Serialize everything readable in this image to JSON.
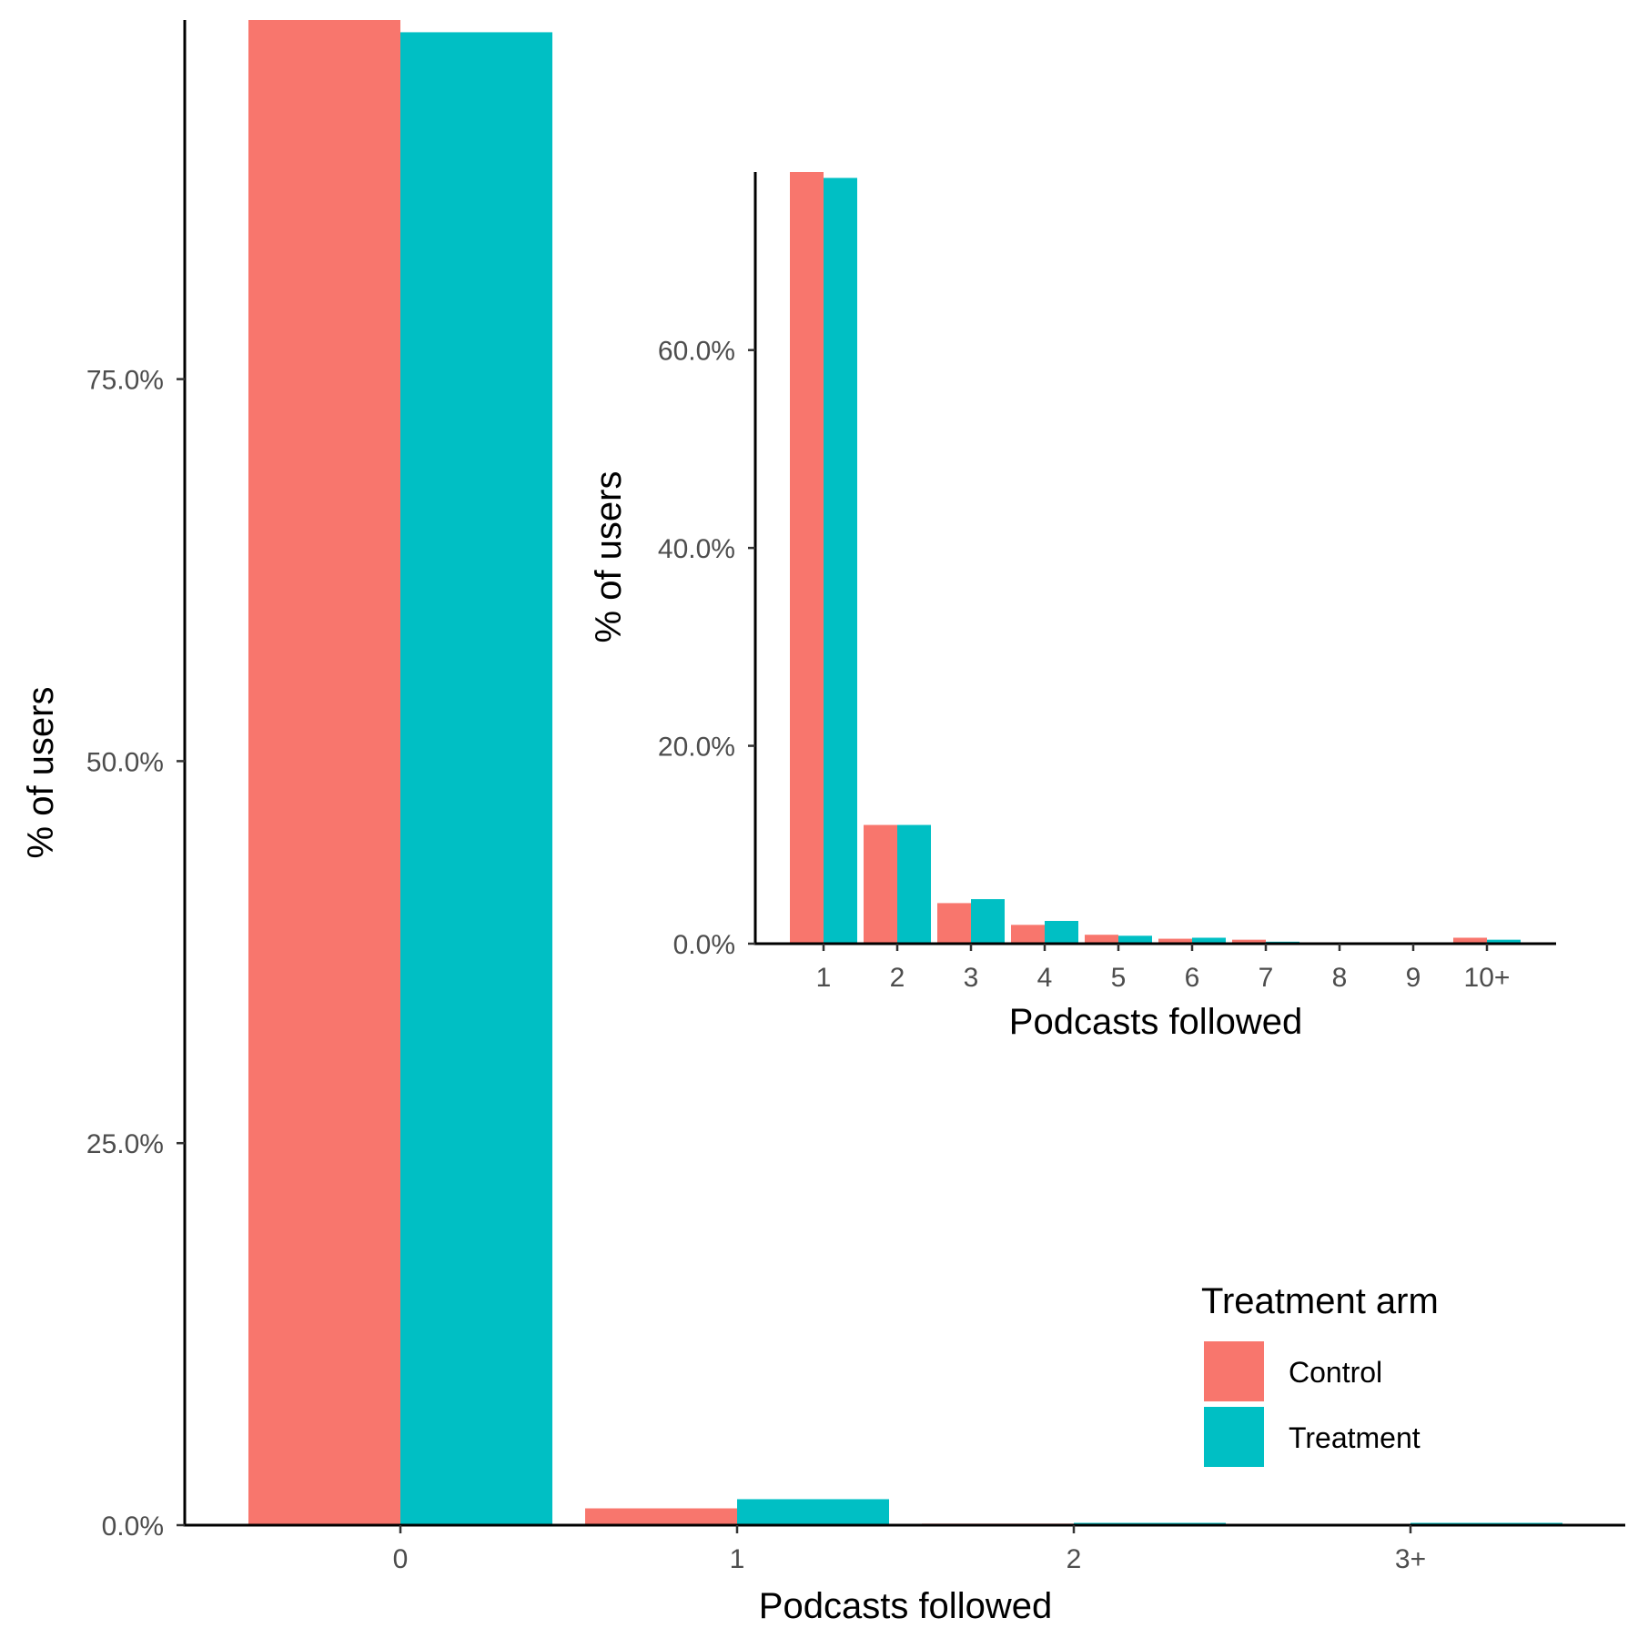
{
  "chart_data": [
    {
      "type": "bar",
      "categories": [
        "0",
        "1",
        "2",
        "3+"
      ],
      "series": [
        {
          "name": "Control",
          "color": "#F8766D",
          "values": [
            98.5,
            1.1,
            0.1,
            0.05
          ]
        },
        {
          "name": "Treatment",
          "color": "#00BFC4",
          "values": [
            97.7,
            1.7,
            0.15,
            0.15
          ]
        }
      ],
      "xlabel": "Podcasts followed",
      "ylabel": "% of users",
      "ylim": [
        0,
        98.5
      ],
      "yticks": [
        0,
        25,
        50,
        75
      ],
      "ytick_labels": [
        "0.0%",
        "25.0%",
        "50.0%",
        "75.0%"
      ],
      "grid": false
    },
    {
      "type": "bar",
      "categories": [
        "1",
        "2",
        "3",
        "4",
        "5",
        "6",
        "7",
        "8",
        "9",
        "10+"
      ],
      "series": [
        {
          "name": "Control",
          "color": "#F8766D",
          "values": [
            78.0,
            12.0,
            4.1,
            1.9,
            0.9,
            0.5,
            0.4,
            0.1,
            0.05,
            0.6
          ]
        },
        {
          "name": "Treatment",
          "color": "#00BFC4",
          "values": [
            77.4,
            12.0,
            4.5,
            2.3,
            0.8,
            0.6,
            0.2,
            0.1,
            0.1,
            0.4
          ]
        }
      ],
      "xlabel": "Podcasts followed",
      "ylabel": "% of users",
      "ylim": [
        0,
        78.0
      ],
      "yticks": [
        0,
        20,
        40,
        60
      ],
      "ytick_labels": [
        "0.0%",
        "20.0%",
        "40.0%",
        "60.0%"
      ],
      "grid": false
    }
  ],
  "legend": {
    "title": "Treatment arm",
    "position": "bottom-right",
    "items": [
      {
        "label": "Control",
        "color": "#F8766D"
      },
      {
        "label": "Treatment",
        "color": "#00BFC4"
      }
    ]
  }
}
